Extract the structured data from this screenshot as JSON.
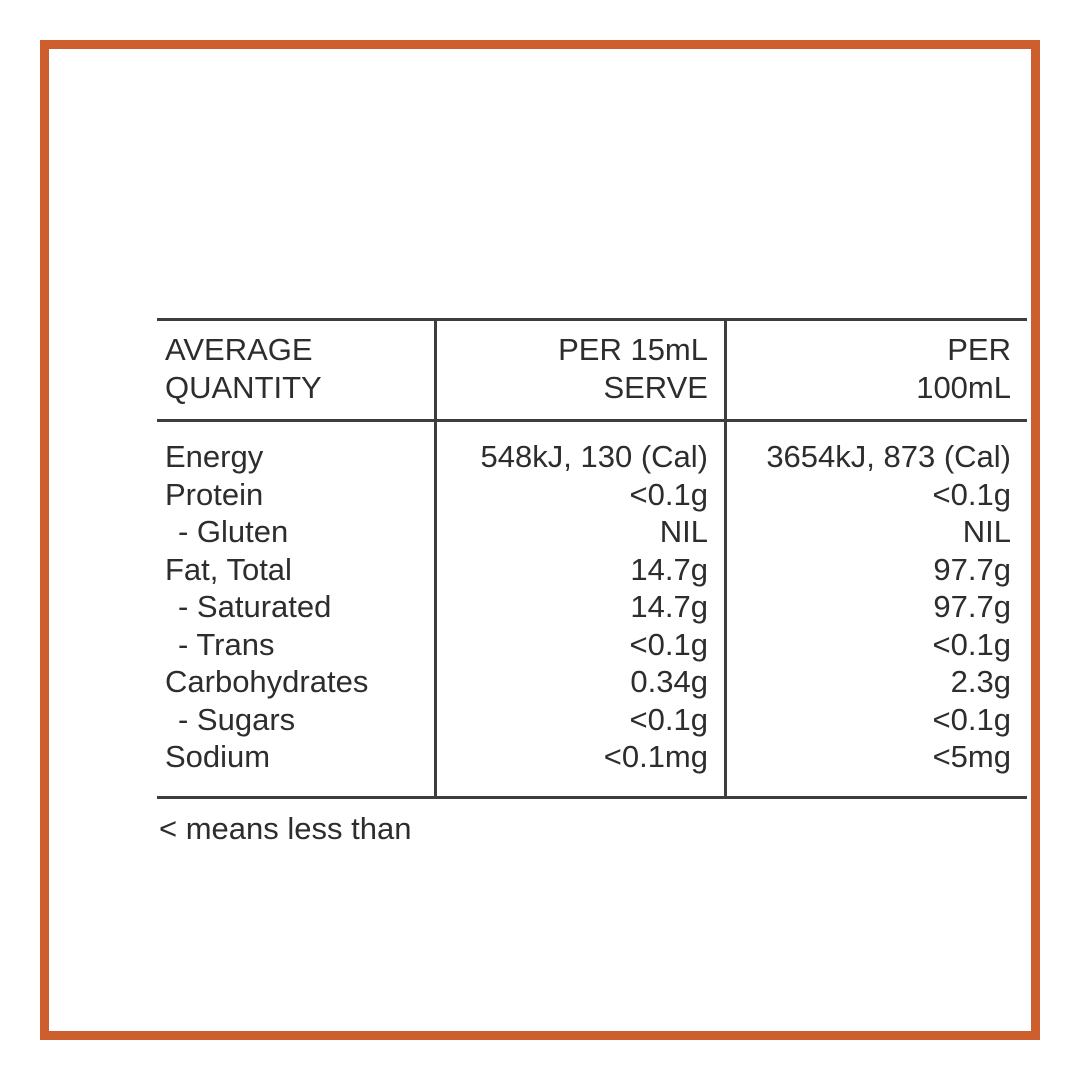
{
  "colors": {
    "frame_border": "#cc5f2d",
    "table_rules": "#3d3d3d",
    "text": "#2d2d2d",
    "background": "#ffffff"
  },
  "table": {
    "header": {
      "col1_line1": "AVERAGE",
      "col1_line2": "QUANTITY",
      "col2_line1": "PER 15mL",
      "col2_line2": "SERVE",
      "col3_line1": "PER",
      "col3_line2": "100mL"
    },
    "rows": [
      {
        "label": "Energy",
        "indent": false,
        "per_serve": "548kJ, 130 (Cal)",
        "per_100ml": "3654kJ, 873 (Cal)"
      },
      {
        "label": "Protein",
        "indent": false,
        "per_serve": "<0.1g",
        "per_100ml": "<0.1g"
      },
      {
        "label": "- Gluten",
        "indent": true,
        "per_serve": "NIL",
        "per_100ml": "NIL"
      },
      {
        "label": "Fat, Total",
        "indent": false,
        "per_serve": "14.7g",
        "per_100ml": "97.7g"
      },
      {
        "label": "- Saturated",
        "indent": true,
        "per_serve": "14.7g",
        "per_100ml": "97.7g"
      },
      {
        "label": "- Trans",
        "indent": true,
        "per_serve": "<0.1g",
        "per_100ml": "<0.1g"
      },
      {
        "label": "Carbohydrates",
        "indent": false,
        "per_serve": "0.34g",
        "per_100ml": "2.3g"
      },
      {
        "label": "- Sugars",
        "indent": true,
        "per_serve": "<0.1g",
        "per_100ml": "<0.1g"
      },
      {
        "label": "Sodium",
        "indent": false,
        "per_serve": "<0.1mg",
        "per_100ml": "<5mg"
      }
    ],
    "footnote": "< means less than"
  }
}
